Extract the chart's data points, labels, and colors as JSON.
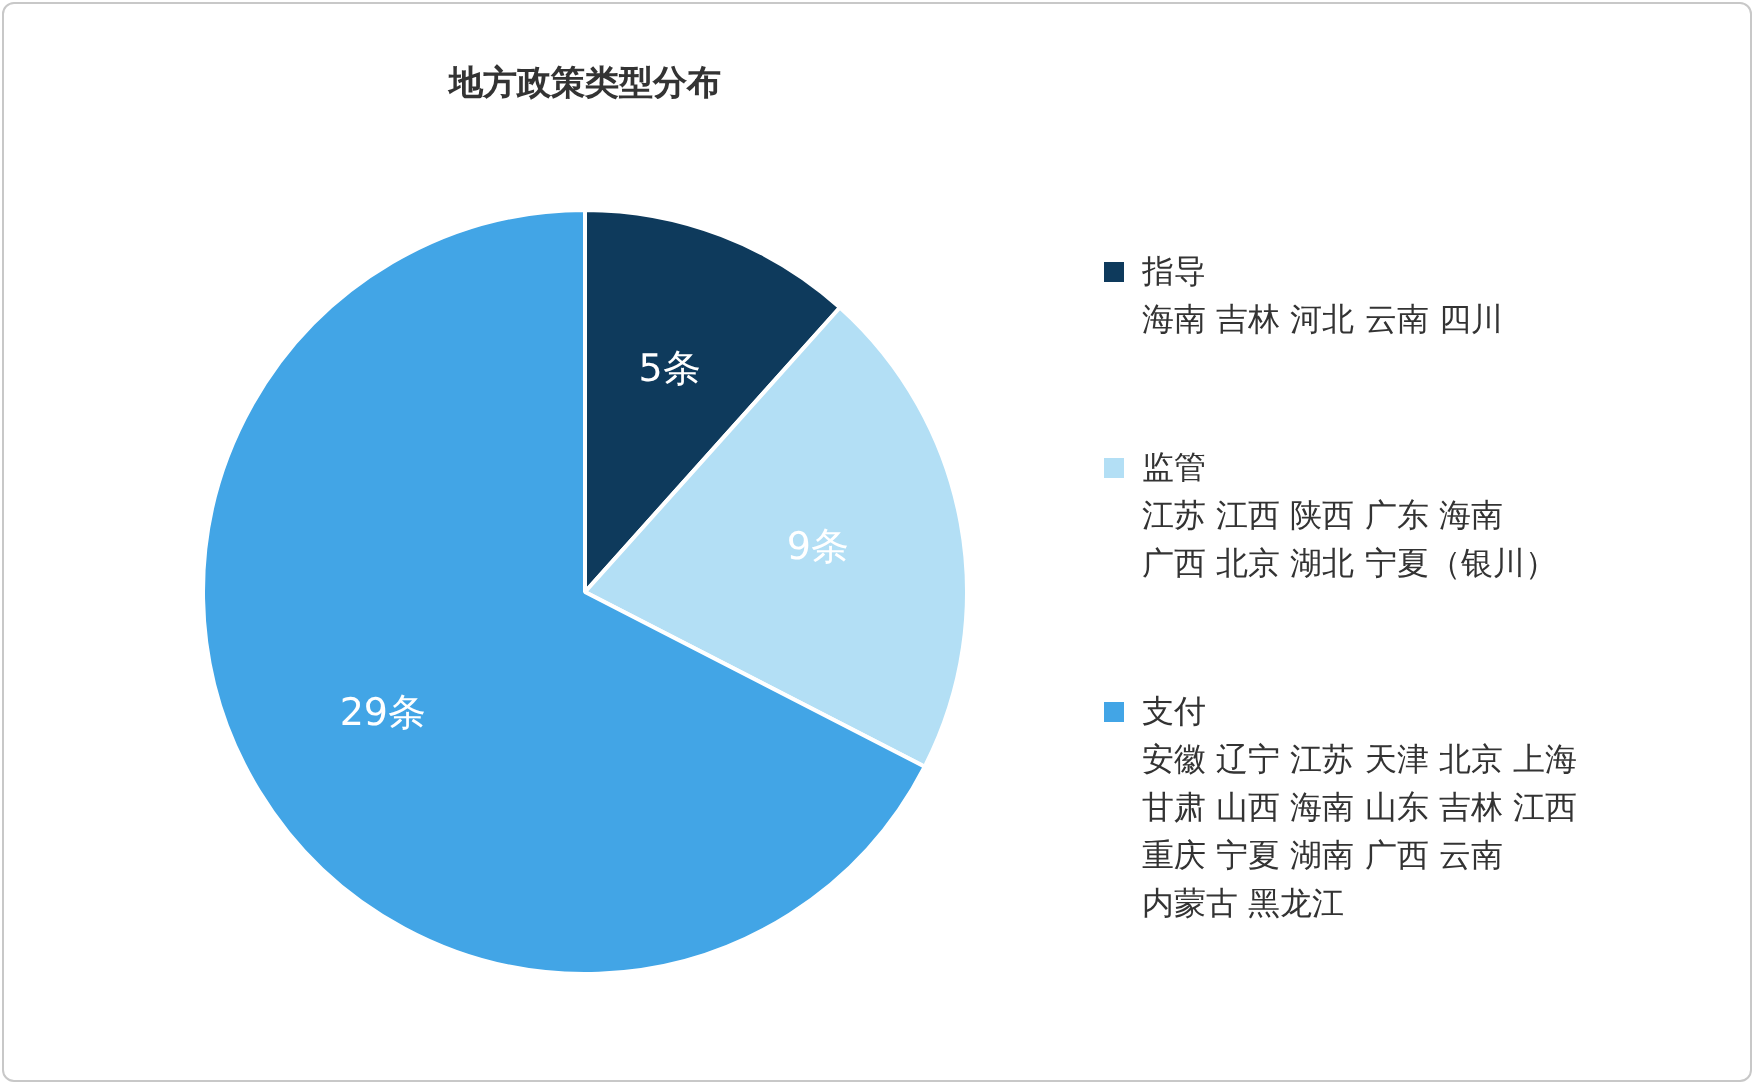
{
  "chart_data": {
    "type": "pie",
    "title": "地方政策类型分布",
    "categories": [
      "指导",
      "监管",
      "支付"
    ],
    "values": [
      5,
      9,
      29
    ],
    "colors": [
      "#0e3a5c",
      "#b3dff5",
      "#42a5e6"
    ],
    "value_labels": [
      "5条",
      "9条",
      "29条"
    ],
    "legend": "right",
    "annotations": [
      {
        "text": "海南 吉林 河北 云南 四川",
        "x": "指导"
      },
      {
        "text": "江苏 江西 陕西 广东 海南",
        "x": "监管"
      },
      {
        "text": "广西 北京 湖北 宁夏（银川）",
        "x": "监管"
      },
      {
        "text": "安徽 辽宁 江苏 天津 北京 上海",
        "x": "支付"
      },
      {
        "text": "甘肃 山西 海南 山东 吉林 江西",
        "x": "支付"
      },
      {
        "text": "重庆 宁夏 湖南 广西 云南",
        "x": "支付"
      },
      {
        "text": "内蒙古 黑龙江",
        "x": "支付"
      }
    ]
  }
}
